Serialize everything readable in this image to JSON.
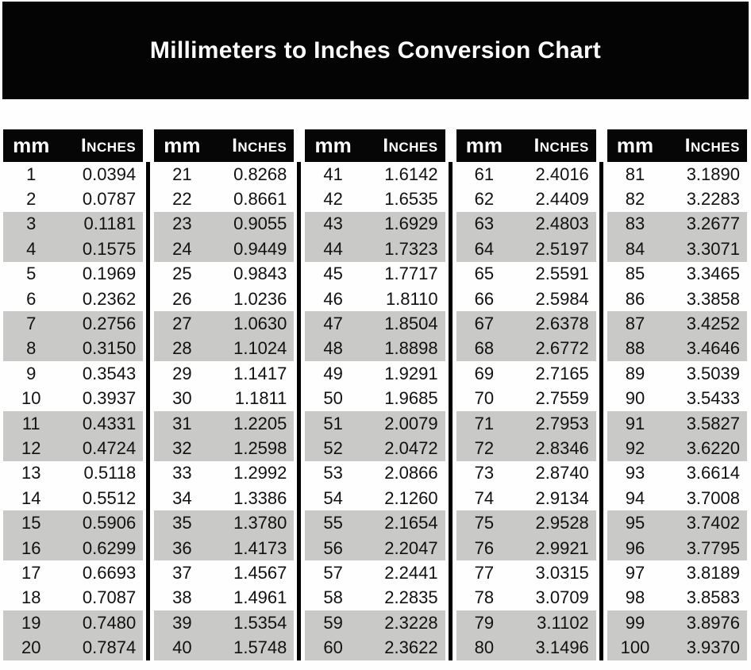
{
  "page": {
    "title": "Millimeters to Inches Conversion Chart"
  },
  "colors": {
    "banner_bg": "#040404",
    "banner_text": "#ffffff",
    "table_header_bg": "#060606",
    "table_header_text": "#ffffff",
    "row_shaded_bg": "#c9cac8",
    "row_plain_bg": "#fefefe",
    "divider": "#000000",
    "data_text": "#111111"
  },
  "chart_data": {
    "type": "table",
    "title": "Millimeters to Inches Conversion Chart",
    "column_headers": [
      "mm",
      "Inches"
    ],
    "groups": 5,
    "rows_per_group": 20,
    "shading_pattern": "pairs of two rows alternate plain/gray",
    "rows": [
      [
        1,
        "0.0394"
      ],
      [
        2,
        "0.0787"
      ],
      [
        3,
        "0.1181"
      ],
      [
        4,
        "0.1575"
      ],
      [
        5,
        "0.1969"
      ],
      [
        6,
        "0.2362"
      ],
      [
        7,
        "0.2756"
      ],
      [
        8,
        "0.3150"
      ],
      [
        9,
        "0.3543"
      ],
      [
        10,
        "0.3937"
      ],
      [
        11,
        "0.4331"
      ],
      [
        12,
        "0.4724"
      ],
      [
        13,
        "0.5118"
      ],
      [
        14,
        "0.5512"
      ],
      [
        15,
        "0.5906"
      ],
      [
        16,
        "0.6299"
      ],
      [
        17,
        "0.6693"
      ],
      [
        18,
        "0.7087"
      ],
      [
        19,
        "0.7480"
      ],
      [
        20,
        "0.7874"
      ],
      [
        21,
        "0.8268"
      ],
      [
        22,
        "0.8661"
      ],
      [
        23,
        "0.9055"
      ],
      [
        24,
        "0.9449"
      ],
      [
        25,
        "0.9843"
      ],
      [
        26,
        "1.0236"
      ],
      [
        27,
        "1.0630"
      ],
      [
        28,
        "1.1024"
      ],
      [
        29,
        "1.1417"
      ],
      [
        30,
        "1.1811"
      ],
      [
        31,
        "1.2205"
      ],
      [
        32,
        "1.2598"
      ],
      [
        33,
        "1.2992"
      ],
      [
        34,
        "1.3386"
      ],
      [
        35,
        "1.3780"
      ],
      [
        36,
        "1.4173"
      ],
      [
        37,
        "1.4567"
      ],
      [
        38,
        "1.4961"
      ],
      [
        39,
        "1.5354"
      ],
      [
        40,
        "1.5748"
      ],
      [
        41,
        "1.6142"
      ],
      [
        42,
        "1.6535"
      ],
      [
        43,
        "1.6929"
      ],
      [
        44,
        "1.7323"
      ],
      [
        45,
        "1.7717"
      ],
      [
        46,
        "1.8110"
      ],
      [
        47,
        "1.8504"
      ],
      [
        48,
        "1.8898"
      ],
      [
        49,
        "1.9291"
      ],
      [
        50,
        "1.9685"
      ],
      [
        51,
        "2.0079"
      ],
      [
        52,
        "2.0472"
      ],
      [
        53,
        "2.0866"
      ],
      [
        54,
        "2.1260"
      ],
      [
        55,
        "2.1654"
      ],
      [
        56,
        "2.2047"
      ],
      [
        57,
        "2.2441"
      ],
      [
        58,
        "2.2835"
      ],
      [
        59,
        "2.3228"
      ],
      [
        60,
        "2.3622"
      ],
      [
        61,
        "2.4016"
      ],
      [
        62,
        "2.4409"
      ],
      [
        63,
        "2.4803"
      ],
      [
        64,
        "2.5197"
      ],
      [
        65,
        "2.5591"
      ],
      [
        66,
        "2.5984"
      ],
      [
        67,
        "2.6378"
      ],
      [
        68,
        "2.6772"
      ],
      [
        69,
        "2.7165"
      ],
      [
        70,
        "2.7559"
      ],
      [
        71,
        "2.7953"
      ],
      [
        72,
        "2.8346"
      ],
      [
        73,
        "2.8740"
      ],
      [
        74,
        "2.9134"
      ],
      [
        75,
        "2.9528"
      ],
      [
        76,
        "2.9921"
      ],
      [
        77,
        "3.0315"
      ],
      [
        78,
        "3.0709"
      ],
      [
        79,
        "3.1102"
      ],
      [
        80,
        "3.1496"
      ],
      [
        81,
        "3.1890"
      ],
      [
        82,
        "3.2283"
      ],
      [
        83,
        "3.2677"
      ],
      [
        84,
        "3.3071"
      ],
      [
        85,
        "3.3465"
      ],
      [
        86,
        "3.3858"
      ],
      [
        87,
        "3.4252"
      ],
      [
        88,
        "3.4646"
      ],
      [
        89,
        "3.5039"
      ],
      [
        90,
        "3.5433"
      ],
      [
        91,
        "3.5827"
      ],
      [
        92,
        "3.6220"
      ],
      [
        93,
        "3.6614"
      ],
      [
        94,
        "3.7008"
      ],
      [
        95,
        "3.7402"
      ],
      [
        96,
        "3.7795"
      ],
      [
        97,
        "3.8189"
      ],
      [
        98,
        "3.8583"
      ],
      [
        99,
        "3.8976"
      ],
      [
        100,
        "3.9370"
      ]
    ]
  }
}
